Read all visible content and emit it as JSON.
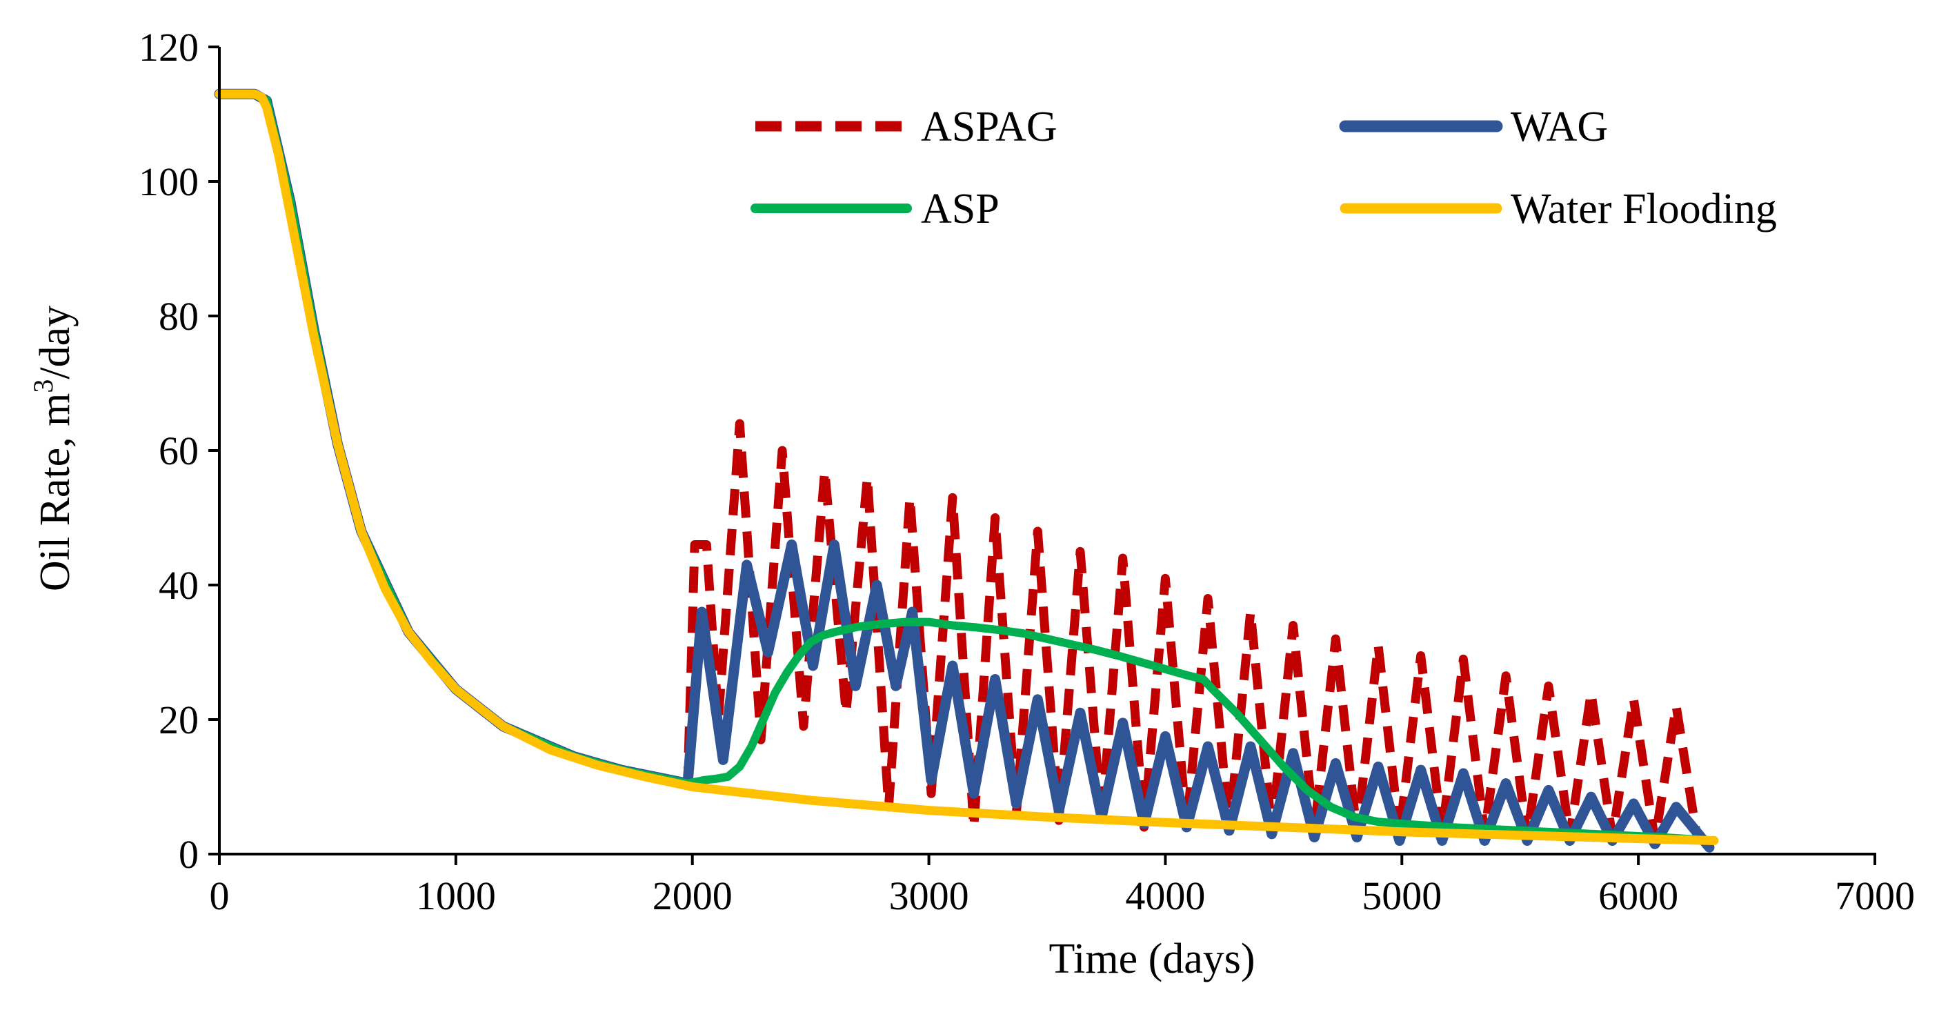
{
  "chart_data": {
    "type": "line",
    "title": "",
    "xlabel": "Time (days)",
    "ylabel": "Oil Rate, m³/day",
    "ylabel_parts": {
      "before": "Oil Rate, m",
      "superscript": "3",
      "after": "/day"
    },
    "xlim": [
      0,
      7000
    ],
    "ylim": [
      0,
      120
    ],
    "xticks": [
      0,
      1000,
      2000,
      3000,
      4000,
      5000,
      6000,
      7000
    ],
    "yticks": [
      0,
      20,
      40,
      60,
      80,
      100,
      120
    ],
    "grid": false,
    "legend_position": "top-right",
    "colors": {
      "aspag": "#C00000",
      "wag": "#2F5597",
      "asp": "#00B050",
      "water_flooding": "#FFC000",
      "axis": "#000000"
    },
    "series": [
      {
        "key": "aspag",
        "name": "ASPAG",
        "style": "dashed",
        "x": [
          0,
          150,
          200,
          300,
          400,
          500,
          600,
          800,
          1000,
          1200,
          1500,
          1700,
          1980,
          2010,
          2060,
          2110,
          2200,
          2290,
          2380,
          2470,
          2560,
          2650,
          2740,
          2830,
          2920,
          3010,
          3100,
          3190,
          3280,
          3370,
          3460,
          3550,
          3640,
          3730,
          3820,
          3910,
          4000,
          4090,
          4180,
          4270,
          4360,
          4450,
          4540,
          4630,
          4720,
          4810,
          4900,
          4990,
          5080,
          5170,
          5260,
          5350,
          5440,
          5530,
          5620,
          5710,
          5800,
          5890,
          5980,
          6070,
          6160,
          6250
        ],
        "y": [
          113,
          113,
          112,
          97,
          78,
          61,
          48,
          33,
          24.5,
          19,
          14.5,
          12.5,
          10.5,
          46,
          46,
          20,
          64,
          17,
          60,
          19,
          57,
          21,
          56,
          7,
          53,
          9,
          53,
          4,
          50,
          6,
          48,
          5,
          45,
          5,
          44,
          4,
          41,
          4,
          38,
          3.5,
          36,
          3.5,
          34,
          3.5,
          32,
          3,
          31,
          3,
          29.5,
          3,
          29,
          3,
          26.5,
          2.5,
          25,
          2.5,
          24,
          2.5,
          23,
          2,
          22,
          2
        ]
      },
      {
        "key": "wag",
        "name": "WAG",
        "style": "solid",
        "x": [
          0,
          150,
          200,
          300,
          400,
          500,
          600,
          800,
          1000,
          1200,
          1500,
          1700,
          1980,
          2040,
          2130,
          2230,
          2320,
          2420,
          2510,
          2600,
          2690,
          2780,
          2860,
          2930,
          3010,
          3100,
          3190,
          3280,
          3370,
          3460,
          3550,
          3640,
          3730,
          3820,
          3910,
          4000,
          4090,
          4180,
          4270,
          4360,
          4450,
          4540,
          4630,
          4720,
          4810,
          4900,
          4990,
          5080,
          5170,
          5260,
          5350,
          5440,
          5530,
          5620,
          5710,
          5800,
          5890,
          5980,
          6070,
          6160,
          6300
        ],
        "y": [
          113,
          113,
          112,
          97,
          78,
          61,
          48,
          33,
          24.5,
          19,
          14.5,
          12.5,
          10.5,
          36,
          14,
          43,
          30,
          46,
          28,
          46,
          25,
          40,
          25,
          36,
          11,
          28,
          9,
          26,
          7.5,
          23,
          6.5,
          21,
          5.5,
          19.5,
          4.5,
          17.5,
          4,
          16,
          3.5,
          16,
          3,
          15,
          2.5,
          13.5,
          2.5,
          13,
          2,
          12.5,
          2,
          12,
          2,
          10.5,
          2,
          9.5,
          2,
          8.5,
          2,
          7.5,
          1.5,
          7,
          1
        ]
      },
      {
        "key": "asp",
        "name": "ASP",
        "style": "solid",
        "x": [
          0,
          150,
          200,
          300,
          400,
          500,
          600,
          800,
          1000,
          1200,
          1500,
          1700,
          1980,
          2050,
          2100,
          2150,
          2200,
          2250,
          2300,
          2350,
          2400,
          2450,
          2500,
          2550,
          2600,
          2700,
          2800,
          2900,
          3000,
          3100,
          3200,
          3300,
          3400,
          3500,
          3600,
          3700,
          3800,
          3900,
          4000,
          4100,
          4160,
          4200,
          4300,
          4400,
          4500,
          4600,
          4700,
          4800,
          4900,
          5000,
          5200,
          5500,
          5800,
          6100,
          6320
        ],
        "y": [
          113,
          113,
          112,
          97,
          78,
          61,
          48,
          33,
          24.5,
          19,
          14.5,
          12.5,
          10.5,
          11,
          11.2,
          11.5,
          13,
          16,
          20,
          24,
          27,
          29.5,
          31.5,
          32.5,
          33,
          33.8,
          34.2,
          34.5,
          34.5,
          34,
          33.7,
          33.3,
          32.8,
          32,
          31.2,
          30.4,
          29.5,
          28.5,
          27.5,
          26.5,
          26,
          24.5,
          21,
          17,
          13,
          9.5,
          7,
          5.5,
          4.8,
          4.5,
          4,
          3.5,
          3,
          2.5,
          2
        ]
      },
      {
        "key": "water_flooding",
        "name": "Water Flooding",
        "style": "solid",
        "x": [
          0,
          150,
          180,
          200,
          250,
          300,
          350,
          400,
          450,
          500,
          600,
          700,
          800,
          900,
          1000,
          1200,
          1400,
          1600,
          1800,
          2000,
          2500,
          3000,
          3500,
          4000,
          4500,
          5000,
          5500,
          6000,
          6320
        ],
        "y": [
          113,
          113,
          112.5,
          111,
          104,
          95,
          86,
          77,
          69,
          61,
          48,
          39.5,
          33,
          28.5,
          24.5,
          19,
          15.5,
          13.2,
          11.5,
          10,
          8,
          6.5,
          5.5,
          4.7,
          4,
          3.3,
          2.8,
          2.3,
          2
        ]
      }
    ]
  }
}
